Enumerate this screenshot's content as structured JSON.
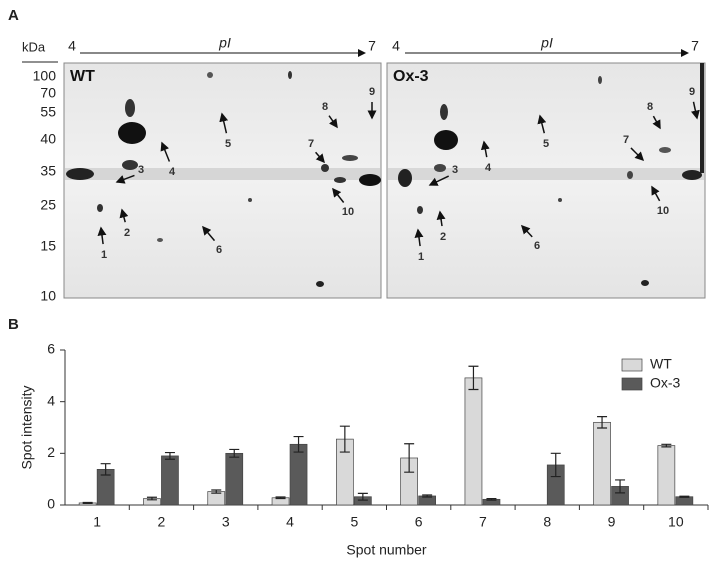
{
  "panel_a": {
    "label": "A",
    "mw_unit": "kDa",
    "mw_markers": [
      "100",
      "70",
      "55",
      "40",
      "35",
      "25",
      "15",
      "10"
    ],
    "ph_start": "4",
    "ph_axis": "pI",
    "ph_end": "7",
    "gels": [
      {
        "title": "WT",
        "spots": [
          "1",
          "2",
          "3",
          "4",
          "5",
          "6",
          "7",
          "8",
          "9",
          "10"
        ]
      },
      {
        "title": "Ox-3",
        "spots": [
          "1",
          "2",
          "3",
          "4",
          "5",
          "6",
          "7",
          "8",
          "9",
          "10"
        ]
      }
    ]
  },
  "chart_data": {
    "type": "bar",
    "panel_label": "B",
    "x_label": "Spot number",
    "y_label": "Spot intensity",
    "categories": [
      "1",
      "2",
      "3",
      "4",
      "5",
      "6",
      "7",
      "8",
      "9",
      "10"
    ],
    "series": [
      {
        "name": "WT",
        "color": "#d9d9d9",
        "values": [
          0.08,
          0.25,
          0.52,
          0.28,
          2.55,
          1.82,
          4.92,
          null,
          3.2,
          2.3
        ],
        "errors": [
          0.02,
          0.05,
          0.06,
          0.03,
          0.5,
          0.55,
          0.45,
          null,
          0.22,
          0.05
        ]
      },
      {
        "name": "Ox-3",
        "color": "#5a5a5a",
        "values": [
          1.38,
          1.9,
          2.0,
          2.35,
          0.32,
          0.35,
          0.22,
          1.55,
          0.72,
          0.32
        ],
        "errors": [
          0.22,
          0.13,
          0.15,
          0.3,
          0.13,
          0.04,
          0.03,
          0.45,
          0.25,
          0.02
        ]
      }
    ],
    "ylim": [
      0,
      6
    ],
    "yticks": [
      0,
      2,
      4,
      6
    ],
    "legend": "upper right"
  }
}
